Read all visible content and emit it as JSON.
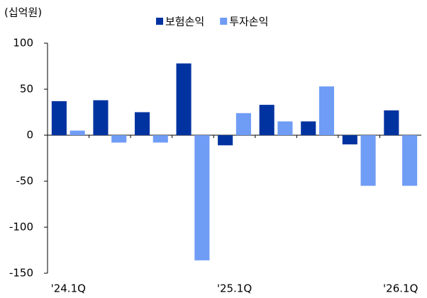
{
  "chart_data": {
    "type": "bar",
    "unit_label": "(십억원)",
    "categories": [
      "'24.1Q",
      null,
      null,
      null,
      "'25.1Q",
      null,
      null,
      null,
      "'26.1Q"
    ],
    "series": [
      {
        "name": "보험손익",
        "color": "#0033a0",
        "values": [
          37,
          38,
          25,
          78,
          -11,
          33,
          15,
          -10,
          27
        ]
      },
      {
        "name": "투자손익",
        "color": "#6f9cf5",
        "values": [
          5,
          -8,
          -8,
          -136,
          24,
          15,
          53,
          -55,
          -55
        ]
      }
    ],
    "ylim": [
      -150,
      100
    ],
    "yticks": [
      -150,
      -100,
      -50,
      0,
      50,
      100
    ],
    "legend": "top"
  }
}
